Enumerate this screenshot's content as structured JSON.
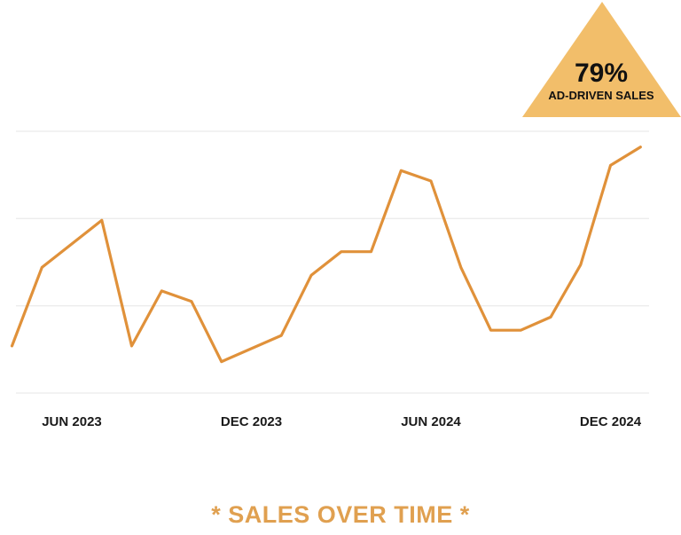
{
  "colors": {
    "line": "#E0913A",
    "badge": "#F2BE6A",
    "grid": "#E6E6E6",
    "caption": "#E0A050"
  },
  "badge": {
    "value": "79%",
    "label": "AD-DRIVEN SALES"
  },
  "caption": "* SALES OVER TIME *",
  "chart_data": {
    "type": "line",
    "title": "",
    "xlabel": "",
    "ylabel": "",
    "x_tick_labels": [
      "JUN 2023",
      "DEC 2023",
      "JUN 2024",
      "DEC 2024"
    ],
    "x_tick_dates": [
      "2023-06",
      "2023-12",
      "2024-06",
      "2024-12"
    ],
    "xlim": [
      "2023-04",
      "2025-01"
    ],
    "ylim": [
      0,
      100
    ],
    "y_gridlines": [
      0,
      33.3,
      66.7,
      100
    ],
    "grid": true,
    "legend": "none",
    "series": [
      {
        "x": [
          "2023-04",
          "2023-05",
          "2023-07",
          "2023-08",
          "2023-09",
          "2023-10",
          "2023-11",
          "2024-01",
          "2024-02",
          "2024-03",
          "2024-04",
          "2024-05",
          "2024-06",
          "2024-07",
          "2024-08",
          "2024-09",
          "2024-10",
          "2024-11",
          "2024-12",
          "2025-01"
        ],
        "values": [
          18,
          48,
          66,
          18,
          39,
          35,
          12,
          22,
          45,
          54,
          54,
          85,
          81,
          48,
          24,
          24,
          29,
          49,
          87,
          94
        ]
      }
    ]
  }
}
